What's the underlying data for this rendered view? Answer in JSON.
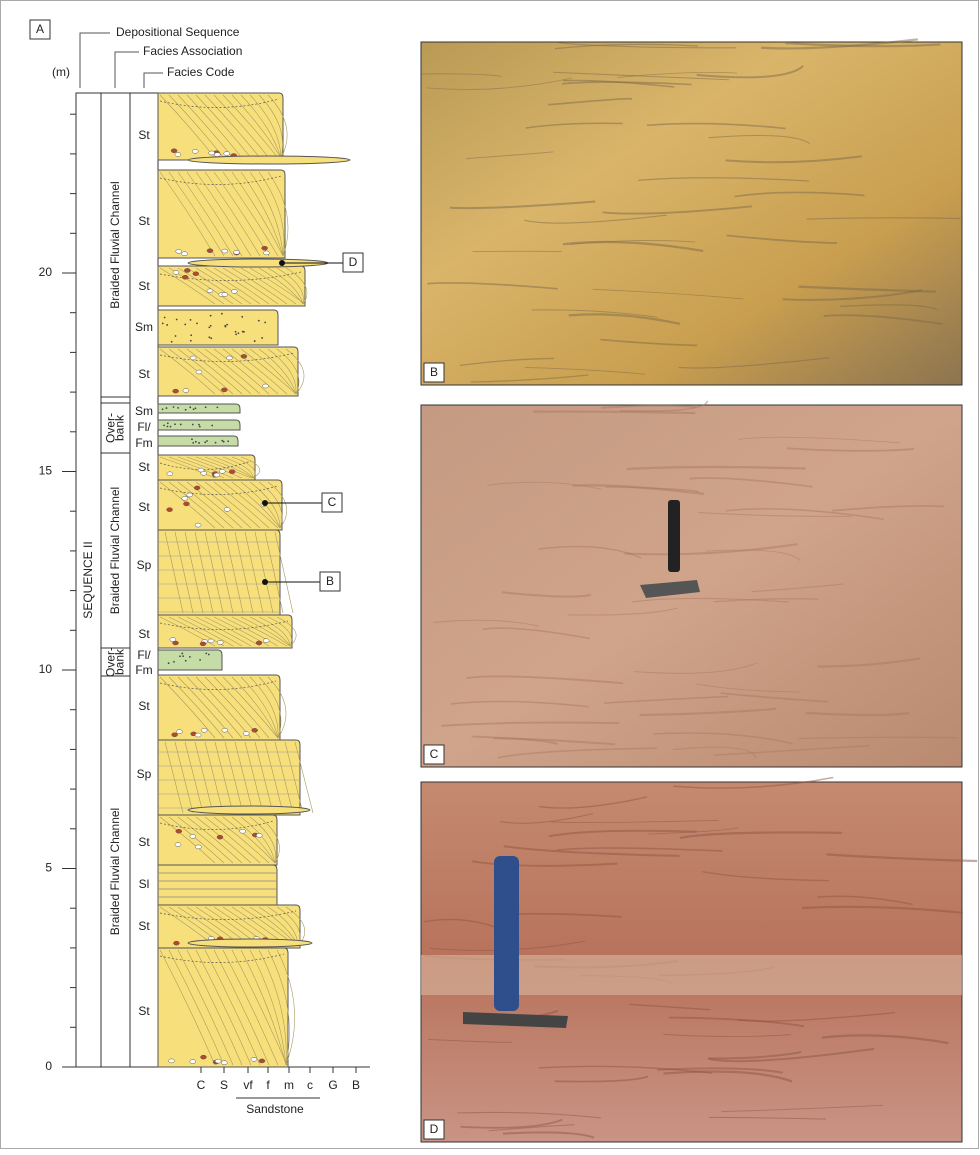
{
  "panels": {
    "a": "A",
    "b": "B",
    "c": "C",
    "d": "D"
  },
  "column": {
    "headers": {
      "sequence": "Depositional Sequence",
      "association": "Facies Association",
      "code": "Facies Code",
      "unit": "(m)"
    },
    "depth_ticks": [
      0,
      5,
      10,
      15,
      20
    ],
    "sequence": "SEQUENCE II",
    "associations": [
      {
        "lines": [
          "Braided Fluvial Channel"
        ]
      },
      {
        "lines": [
          "Over-",
          "bank"
        ]
      },
      {
        "lines": [
          "Braided Fluvial Channel"
        ]
      },
      {
        "lines": [
          "Over-",
          "bank"
        ]
      },
      {
        "lines": [
          "Braided Fluvial Channel"
        ]
      }
    ],
    "facies_codes": [
      "St",
      "St",
      "St",
      "Sm",
      "St",
      "Sm",
      "Fl/",
      "Fm",
      "St",
      "St",
      "Sp",
      "St",
      "Fl/",
      "Fm",
      "St",
      "Sp",
      "St",
      "Sl",
      "St",
      "St"
    ],
    "grain_sizes": [
      "C",
      "S",
      "vf",
      "f",
      "m",
      "c",
      "G",
      "B"
    ],
    "grain_group": "Sandstone",
    "callouts": [
      "D",
      "C",
      "B"
    ]
  }
}
